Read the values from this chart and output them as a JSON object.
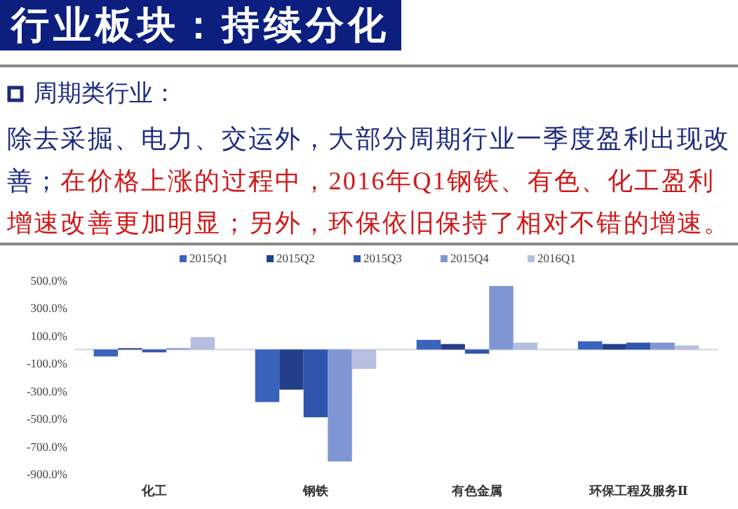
{
  "chart_data": {
    "type": "bar",
    "title": "行业板块：持续分化",
    "subtitle": "周期类行业：",
    "annotations": [
      "除去采掘、电力、交运外，大部分周期行业一季度盈利出现改善；",
      "在价格上涨的过程中，2016年Q1钢铁、有色、化工盈利增速改善更加明显；另外，环保依旧保持了相对不错的增速。"
    ],
    "categories": [
      "化工",
      "钢铁",
      "有色金属",
      "环保工程及服务Ⅱ"
    ],
    "series": [
      {
        "name": "2015Q1",
        "color": "#3a64bb",
        "values": [
          -50,
          -380,
          70,
          60
        ]
      },
      {
        "name": "2015Q2",
        "color": "#243f8a",
        "values": [
          10,
          -290,
          40,
          40
        ]
      },
      {
        "name": "2015Q3",
        "color": "#2f55ac",
        "values": [
          -20,
          -490,
          -30,
          50
        ]
      },
      {
        "name": "2015Q4",
        "color": "#8096d4",
        "values": [
          10,
          -810,
          460,
          50
        ]
      },
      {
        "name": "2016Q1",
        "color": "#b5c0e0",
        "values": [
          90,
          -140,
          50,
          30
        ]
      }
    ],
    "ylim": [
      -900,
      500
    ],
    "yticks": [
      {
        "value": 500,
        "label": "500.0%"
      },
      {
        "value": 300,
        "label": "300.0%"
      },
      {
        "value": 100,
        "label": "100.0%"
      },
      {
        "value": -100,
        "label": "-100.0%"
      },
      {
        "value": -300,
        "label": "-300.0%"
      },
      {
        "value": -500,
        "label": "-500.0%"
      },
      {
        "value": -700,
        "label": "-700.0%"
      },
      {
        "value": -900,
        "label": "-900.0%"
      }
    ],
    "grid": false,
    "legend": "top"
  }
}
